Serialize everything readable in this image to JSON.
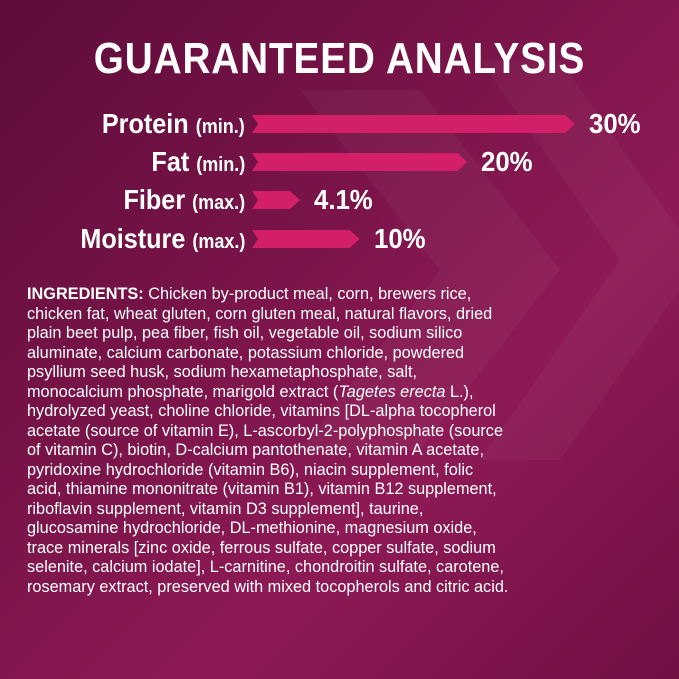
{
  "title": "GUARANTEED ANALYSIS",
  "colors": {
    "bar": "#d21f67",
    "background": "#7a1449",
    "text": "#ffffff"
  },
  "analysis": [
    {
      "name": "Protein",
      "qualifier": "(min.)",
      "value": 30,
      "value_label": "30%"
    },
    {
      "name": "Fat",
      "qualifier": "(min.)",
      "value": 20,
      "value_label": "20%"
    },
    {
      "name": "Fiber",
      "qualifier": "(max.)",
      "value": 4.1,
      "value_label": "4.1%"
    },
    {
      "name": "Moisture",
      "qualifier": "(max.)",
      "value": 10,
      "value_label": "10%"
    }
  ],
  "ingredients": {
    "heading": "INGREDIENTS:",
    "line0": " Chicken by-product meal, corn, brewers rice,",
    "lines": [
      "chicken fat, wheat gluten, corn gluten meal, natural flavors, dried",
      "plain beet pulp, pea fiber, fish oil, vegetable oil, sodium silico",
      "aluminate, calcium carbonate, potassium chloride, powdered",
      "psyllium seed husk, sodium hexametaphosphate, salt,"
    ],
    "line5a": "monocalcium phosphate, marigold extract (",
    "line5b": "Tagetes erecta",
    "line5c": " L.),",
    "lines2": [
      "hydrolyzed yeast, choline chloride, vitamins [DL-alpha tocopherol",
      "acetate (source of vitamin E), L-ascorbyl-2-polyphosphate (source",
      "of vitamin C), biotin, D-calcium pantothenate, vitamin A acetate,",
      "pyridoxine hydrochloride (vitamin B6), niacin supplement, folic",
      "acid, thiamine mononitrate (vitamin B1), vitamin B12 supplement,",
      "riboflavin supplement, vitamin D3 supplement], taurine,",
      "glucosamine hydrochloride, DL-methionine, magnesium oxide,",
      "trace minerals [zinc oxide, ferrous sulfate, copper sulfate, sodium",
      "selenite, calcium iodate], L-carnitine, chondroitin sulfate, carotene,",
      "rosemary extract, preserved with mixed tocopherols and citric acid."
    ]
  }
}
